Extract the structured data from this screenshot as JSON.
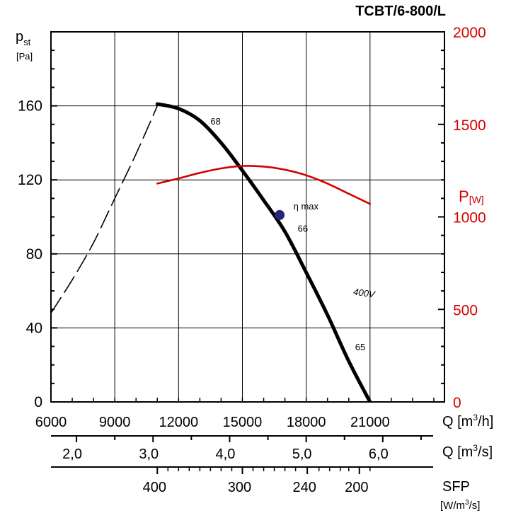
{
  "chart_data": {
    "type": "line",
    "title": "TCBT/6-800/L",
    "y_left": {
      "label": "p",
      "label_sub": "st",
      "unit": "[Pa]",
      "ylim": [
        0,
        200
      ],
      "ticks": [
        "0",
        "40",
        "80",
        "120",
        "160"
      ],
      "tick_values": [
        0,
        40,
        80,
        120,
        160
      ]
    },
    "y_right": {
      "label": "P",
      "unit": "[W]",
      "color": "#d40000",
      "ylim": [
        0,
        2000
      ],
      "ticks": [
        "0",
        "500",
        "1000",
        "1500",
        "2000"
      ],
      "tick_values": [
        0,
        500,
        1000,
        1500,
        2000
      ]
    },
    "x_axis_flow_h": {
      "label": "Q [m",
      "label_sup": "3",
      "label_end": "/h]",
      "xlim": [
        6000,
        24500
      ],
      "ticks": [
        "6000",
        "9000",
        "12000",
        "15000",
        "18000",
        "21000"
      ],
      "tick_values": [
        6000,
        9000,
        12000,
        15000,
        18000,
        21000
      ]
    },
    "x_axis_flow_s": {
      "label": "Q [m",
      "label_sup": "3",
      "label_end": "/s]",
      "ticks": [
        "2,0",
        "3,0",
        "4,0",
        "5,0",
        "6,0"
      ],
      "tick_values": [
        2.0,
        3.0,
        4.0,
        5.0,
        6.0
      ]
    },
    "x_axis_sfp": {
      "label": "SFP",
      "unit": "[W/m",
      "unit_sup": "3",
      "unit_end": "/s]",
      "ticks": [
        "400",
        "300",
        "240",
        "200"
      ],
      "tick_values": [
        400,
        300,
        240,
        200
      ]
    },
    "series": [
      {
        "name": "pressure",
        "axis": "left",
        "style": "solid",
        "color": "#000000",
        "x": [
          11000,
          12000,
          13000,
          14000,
          15000,
          16000,
          17000,
          18000,
          19000,
          20000,
          21000
        ],
        "y": [
          161,
          158.5,
          152,
          140,
          125,
          109,
          92,
          70,
          47,
          22,
          0
        ]
      },
      {
        "name": "pressure-unstable",
        "axis": "left",
        "style": "dashed",
        "color": "#000000",
        "x": [
          6000,
          7000,
          8000,
          9000,
          10000,
          11000
        ],
        "y": [
          48,
          66,
          86,
          110,
          134,
          160
        ]
      },
      {
        "name": "power-400V",
        "axis": "right",
        "style": "solid",
        "color": "#d40000",
        "x": [
          11000,
          12000,
          13000,
          14000,
          15000,
          16000,
          17000,
          18000,
          19000,
          20000,
          21000
        ],
        "y": [
          1180,
          1208,
          1238,
          1262,
          1275,
          1272,
          1255,
          1225,
          1180,
          1125,
          1070
        ]
      }
    ],
    "annotations": [
      {
        "text": "68",
        "x": 13500,
        "y": 150
      },
      {
        "text": "66",
        "x": 17600,
        "y": 92
      },
      {
        "text": "65",
        "x": 20300,
        "y": 28
      },
      {
        "text": "400V",
        "x": 20200,
        "y": 58,
        "color": "#d40000"
      },
      {
        "text": "η max",
        "x": 17400,
        "y": 104,
        "color": "#1a1a6e"
      }
    ],
    "marker": {
      "name": "η max",
      "x": 16750,
      "y": 101,
      "color": "#26267a"
    },
    "grid": true
  }
}
